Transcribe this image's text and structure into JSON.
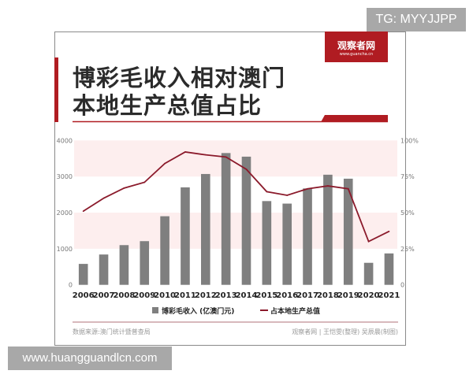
{
  "header": {
    "title_line1": "博彩毛收入相对澳门",
    "title_line2": "本地生产总值占比",
    "logo_text": "观察者网",
    "logo_url_text": "www.guancha.cn"
  },
  "overlays": {
    "top_tag": "TG: MYYJJPP",
    "bottom_watermark": "www.huangguandlcn.com"
  },
  "footer": {
    "source": "数据来源:澳门统计暨普查局",
    "credit": "观察者网 | 王恺雯(整理) 吴辰晨(制图)"
  },
  "colors": {
    "bar": "#7f7f7f",
    "line": "#8b1a2b",
    "accent": "#b01c22",
    "band": "#fdeeee"
  },
  "chart_data": {
    "type": "bar",
    "categories": [
      "2006",
      "2007",
      "2008",
      "2009",
      "2010",
      "2011",
      "2012",
      "2013",
      "2014",
      "2015",
      "2016",
      "2017",
      "2018",
      "2019",
      "2020",
      "2021"
    ],
    "series": [
      {
        "name": "博彩毛收入 (亿澳门元)",
        "type": "bar",
        "axis": "left",
        "values": [
          580,
          840,
          1100,
          1210,
          1900,
          2700,
          3070,
          3650,
          3550,
          2320,
          2250,
          2670,
          3050,
          2940,
          610,
          870
        ]
      },
      {
        "name": "占本地生产总值",
        "type": "line",
        "axis": "right",
        "values": [
          51,
          60,
          67,
          71,
          84,
          92,
          90,
          88.5,
          80,
          64.5,
          62,
          66.5,
          68.5,
          66.5,
          30,
          37
        ]
      }
    ],
    "left_axis": {
      "ylim": [
        0,
        4000
      ],
      "ticks": [
        "0",
        "1000",
        "2000",
        "3000",
        "4000"
      ]
    },
    "right_axis": {
      "ylim": [
        0,
        100
      ],
      "ticks": [
        "0",
        "25%",
        "50%",
        "75%",
        "100%"
      ]
    },
    "legend": "bottom",
    "grid": "alternating shaded bands"
  }
}
